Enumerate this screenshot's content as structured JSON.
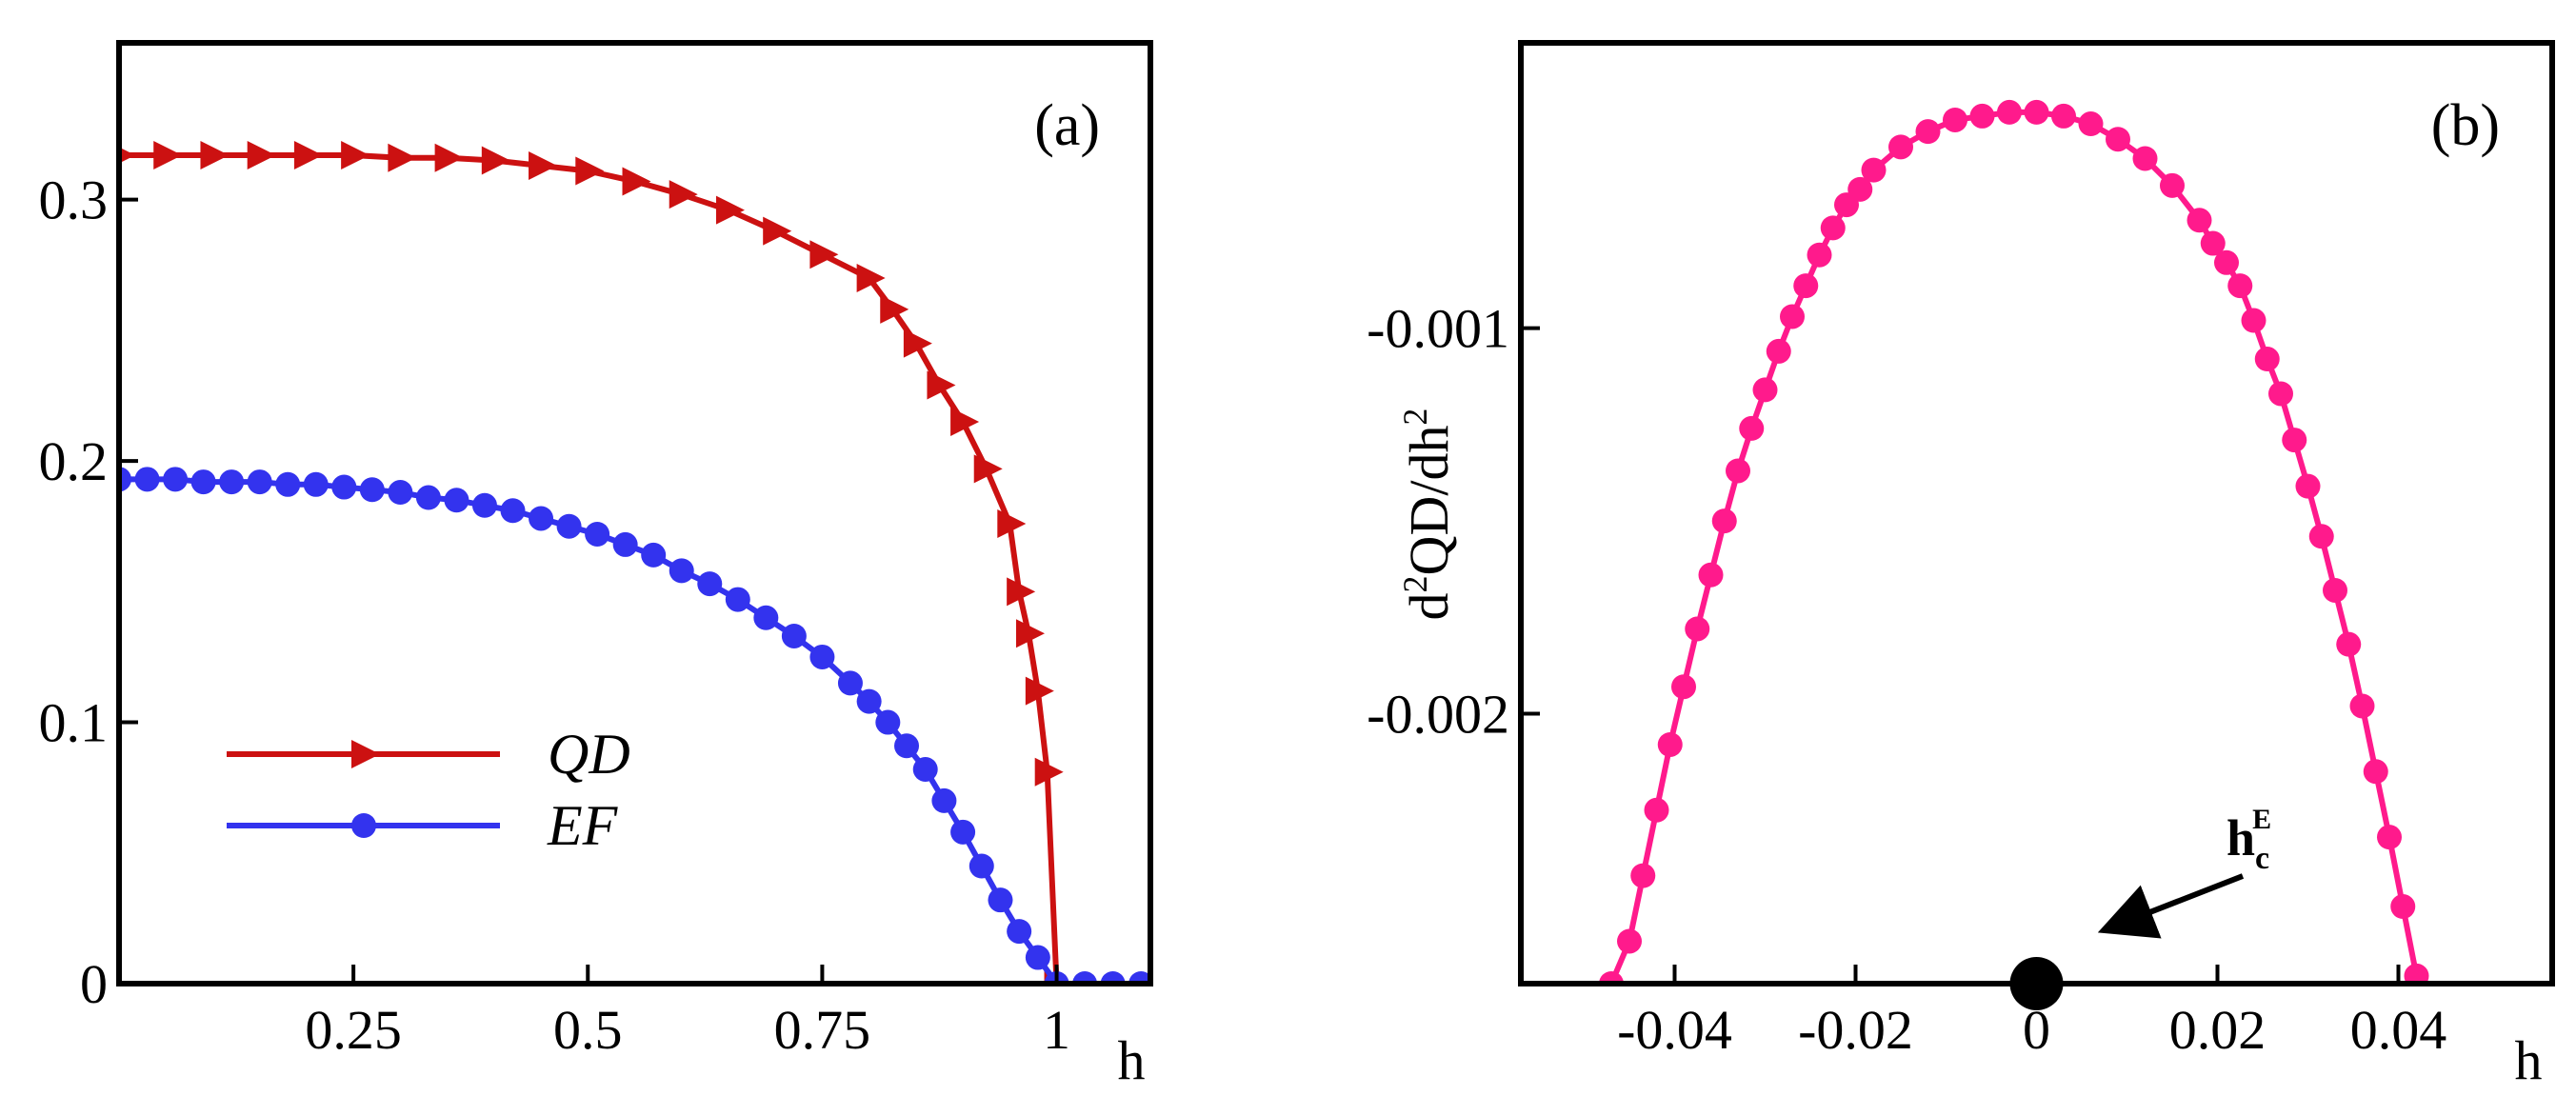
{
  "chart_data": [
    {
      "id": "a",
      "type": "line",
      "panel_label": "(a)",
      "xlabel": "h",
      "ylabel": "",
      "xlim": [
        0,
        1.1
      ],
      "ylim": [
        0,
        0.36
      ],
      "xticks": [
        0.25,
        0.5,
        0.75,
        1
      ],
      "xtick_labels": [
        "0.25",
        "0.5",
        "0.75",
        "1"
      ],
      "yticks": [
        0,
        0.1,
        0.2,
        0.3
      ],
      "ytick_labels": [
        "0",
        "0.1",
        "0.2",
        "0.3"
      ],
      "legend_position": "lower-left",
      "series": [
        {
          "name": "QD",
          "color": "#cc1111",
          "marker": "triangle-right",
          "x": [
            0,
            0.05,
            0.1,
            0.15,
            0.2,
            0.25,
            0.3,
            0.35,
            0.4,
            0.45,
            0.5,
            0.55,
            0.6,
            0.65,
            0.7,
            0.75,
            0.8,
            0.825,
            0.85,
            0.875,
            0.9,
            0.925,
            0.95,
            0.96,
            0.97,
            0.98,
            0.99,
            1.0
          ],
          "y": [
            0.317,
            0.317,
            0.317,
            0.317,
            0.317,
            0.317,
            0.316,
            0.316,
            0.315,
            0.313,
            0.311,
            0.307,
            0.302,
            0.296,
            0.288,
            0.279,
            0.27,
            0.258,
            0.245,
            0.229,
            0.215,
            0.197,
            0.176,
            0.15,
            0.134,
            0.112,
            0.081,
            0.0
          ]
        },
        {
          "name": "EF",
          "color": "#3333ee",
          "marker": "circle",
          "x": [
            0,
            0.03,
            0.06,
            0.09,
            0.12,
            0.15,
            0.18,
            0.21,
            0.24,
            0.27,
            0.3,
            0.33,
            0.36,
            0.39,
            0.42,
            0.45,
            0.48,
            0.51,
            0.54,
            0.57,
            0.6,
            0.63,
            0.66,
            0.69,
            0.72,
            0.75,
            0.78,
            0.8,
            0.82,
            0.84,
            0.86,
            0.88,
            0.9,
            0.92,
            0.94,
            0.96,
            0.98,
            1.0,
            1.03,
            1.06,
            1.09
          ],
          "y": [
            0.193,
            0.193,
            0.193,
            0.192,
            0.192,
            0.192,
            0.191,
            0.191,
            0.19,
            0.189,
            0.188,
            0.186,
            0.185,
            0.183,
            0.181,
            0.178,
            0.175,
            0.172,
            0.168,
            0.164,
            0.158,
            0.153,
            0.147,
            0.14,
            0.133,
            0.125,
            0.115,
            0.108,
            0.1,
            0.091,
            0.082,
            0.07,
            0.058,
            0.045,
            0.032,
            0.02,
            0.01,
            0.0,
            0.0,
            0.0,
            0.0
          ]
        }
      ]
    },
    {
      "id": "b",
      "type": "line",
      "panel_label": "(b)",
      "xlabel": "h",
      "ylabel_main": "d",
      "ylabel_sup1": "2",
      "ylabel_mid": "QD/dh",
      "ylabel_sup2": "2",
      "xlim": [
        -0.057,
        0.057
      ],
      "ylim": [
        -0.0027,
        -0.00026
      ],
      "xticks": [
        -0.04,
        -0.02,
        0,
        0.02,
        0.04
      ],
      "xtick_labels": [
        "-0.04",
        "-0.02",
        "0",
        "0.02",
        "0.04"
      ],
      "yticks": [
        -0.001,
        -0.002
      ],
      "ytick_labels": [
        "-0.001",
        "-0.002"
      ],
      "series": [
        {
          "name": "d2QD/dh2",
          "color": "#ff1a8c",
          "marker": "circle",
          "x": [
            -0.047,
            -0.045,
            -0.0435,
            -0.042,
            -0.0405,
            -0.039,
            -0.0375,
            -0.036,
            -0.0345,
            -0.033,
            -0.0315,
            -0.03,
            -0.0285,
            -0.027,
            -0.0255,
            -0.024,
            -0.0225,
            -0.021,
            -0.0195,
            -0.018,
            -0.015,
            -0.012,
            -0.009,
            -0.006,
            -0.003,
            0.0,
            0.003,
            0.006,
            0.009,
            0.012,
            0.015,
            0.018,
            0.0195,
            0.021,
            0.0225,
            0.024,
            0.0255,
            0.027,
            0.0285,
            0.03,
            0.0315,
            0.033,
            0.0345,
            0.036,
            0.0375,
            0.039,
            0.0405,
            0.042
          ],
          "y": [
            -0.0027,
            -0.00259,
            -0.00242,
            -0.00225,
            -0.00208,
            -0.00193,
            -0.00178,
            -0.00164,
            -0.0015,
            -0.00137,
            -0.00126,
            -0.00116,
            -0.00106,
            -0.00097,
            -0.00089,
            -0.00081,
            -0.00074,
            -0.00068,
            -0.00064,
            -0.00059,
            -0.00053,
            -0.00049,
            -0.00046,
            -0.00045,
            -0.00044,
            -0.00044,
            -0.00045,
            -0.00047,
            -0.00051,
            -0.00056,
            -0.00063,
            -0.00072,
            -0.00078,
            -0.00083,
            -0.00089,
            -0.00098,
            -0.00108,
            -0.00117,
            -0.00129,
            -0.00141,
            -0.00154,
            -0.00168,
            -0.00182,
            -0.00198,
            -0.00215,
            -0.00232,
            -0.0025,
            -0.00268
          ]
        }
      ],
      "critical_point": {
        "x": 0,
        "y": -0.0027
      },
      "annotation": {
        "text": "h",
        "sub": "c",
        "sup": "E"
      }
    }
  ]
}
